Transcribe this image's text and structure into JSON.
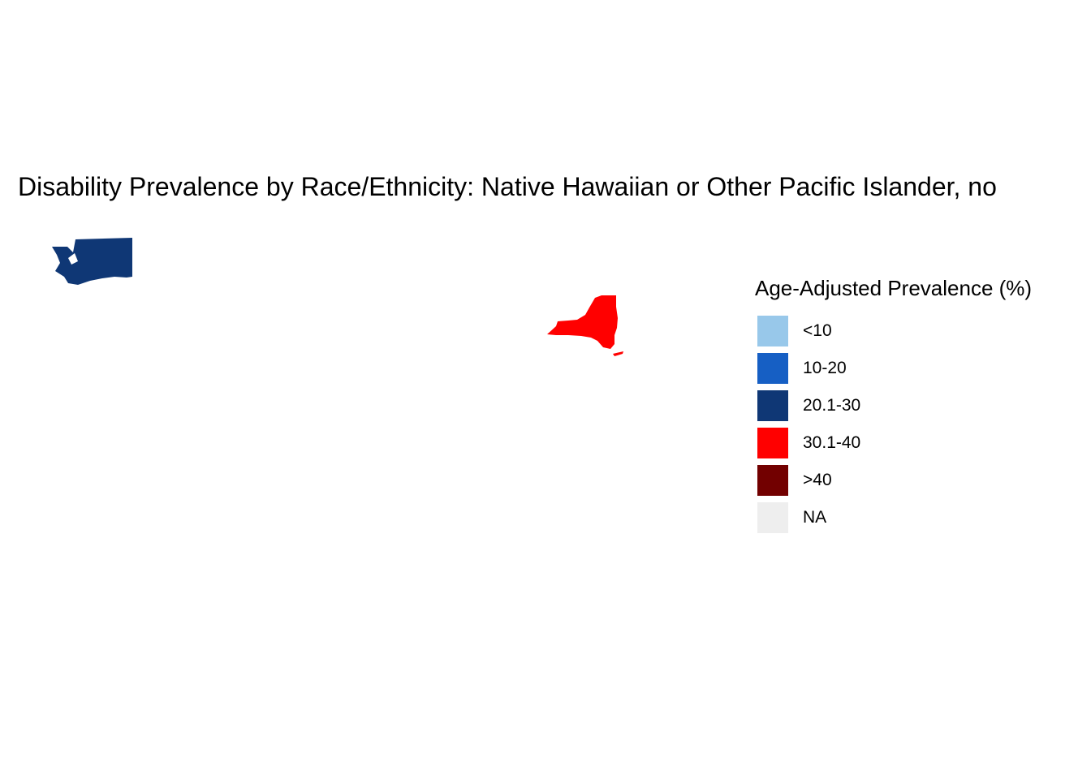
{
  "map": {
    "title": "Disability Prevalence by Race/Ethnicity: Native Hawaiian or Other Pacific Islander, no",
    "regions": [
      {
        "name": "Washington",
        "category": "20.1-30",
        "color": "#0f3775"
      },
      {
        "name": "New York",
        "category": "30.1-40",
        "color": "#ff0000"
      }
    ]
  },
  "legend": {
    "title": "Age-Adjusted Prevalence (%)",
    "items": [
      {
        "label": "<10",
        "color": "#98c8ea"
      },
      {
        "label": "10-20",
        "color": "#165fc4"
      },
      {
        "label": "20.1-30",
        "color": "#0f3775"
      },
      {
        "label": "30.1-40",
        "color": "#ff0000"
      },
      {
        "label": ">40",
        "color": "#720000"
      },
      {
        "label": "NA",
        "color": "#eeeeee"
      }
    ]
  }
}
